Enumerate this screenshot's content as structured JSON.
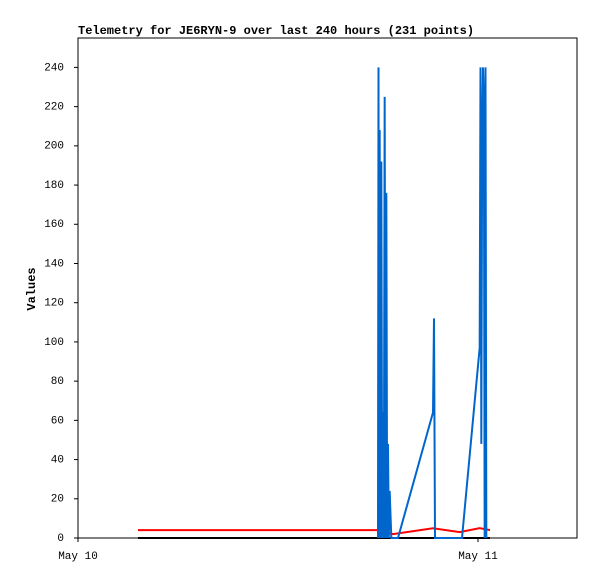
{
  "chart_data": {
    "type": "line",
    "title": "Telemetry for JE6RYN-9 over last 240 hours (231 points)",
    "y_label": "Values",
    "xlim": [
      0,
      29.94
    ],
    "xticks": [
      {
        "value": 0,
        "label": "May 10"
      },
      {
        "value": 24,
        "label": "May 11"
      }
    ],
    "ylim": [
      0,
      255
    ],
    "yticks": [
      0,
      20,
      40,
      60,
      80,
      100,
      120,
      140,
      160,
      180,
      200,
      220,
      240
    ],
    "grid": false,
    "series": [
      {
        "color": "#000000",
        "x": [
          3.6,
          24.72
        ],
        "values": [
          0,
          0
        ]
      },
      {
        "color": "#ff0000",
        "x": [
          3.6,
          18.0,
          18.9,
          21.3,
          22.9,
          24.1,
          24.72
        ],
        "values": [
          4,
          4,
          2,
          5,
          3,
          5,
          4
        ]
      },
      {
        "color": "#0066cc",
        "x": [
          18.0,
          18.03,
          18.06,
          18.1,
          18.15,
          18.2,
          18.25,
          18.3,
          18.35,
          18.4,
          18.45,
          18.5,
          18.55,
          18.6,
          18.65,
          18.7,
          18.8,
          19.2,
          21.3,
          21.36,
          21.42,
          23.04,
          24.1,
          24.15,
          24.2,
          24.25,
          24.3,
          24.35,
          24.4,
          24.45,
          24.5
        ],
        "values": [
          0,
          240,
          0,
          208,
          0,
          192,
          0,
          64,
          0,
          225,
          0,
          176,
          0,
          48,
          0,
          24,
          0,
          0,
          64,
          112,
          0,
          0,
          97,
          240,
          48,
          208,
          240,
          224,
          0,
          240,
          0
        ]
      }
    ]
  }
}
